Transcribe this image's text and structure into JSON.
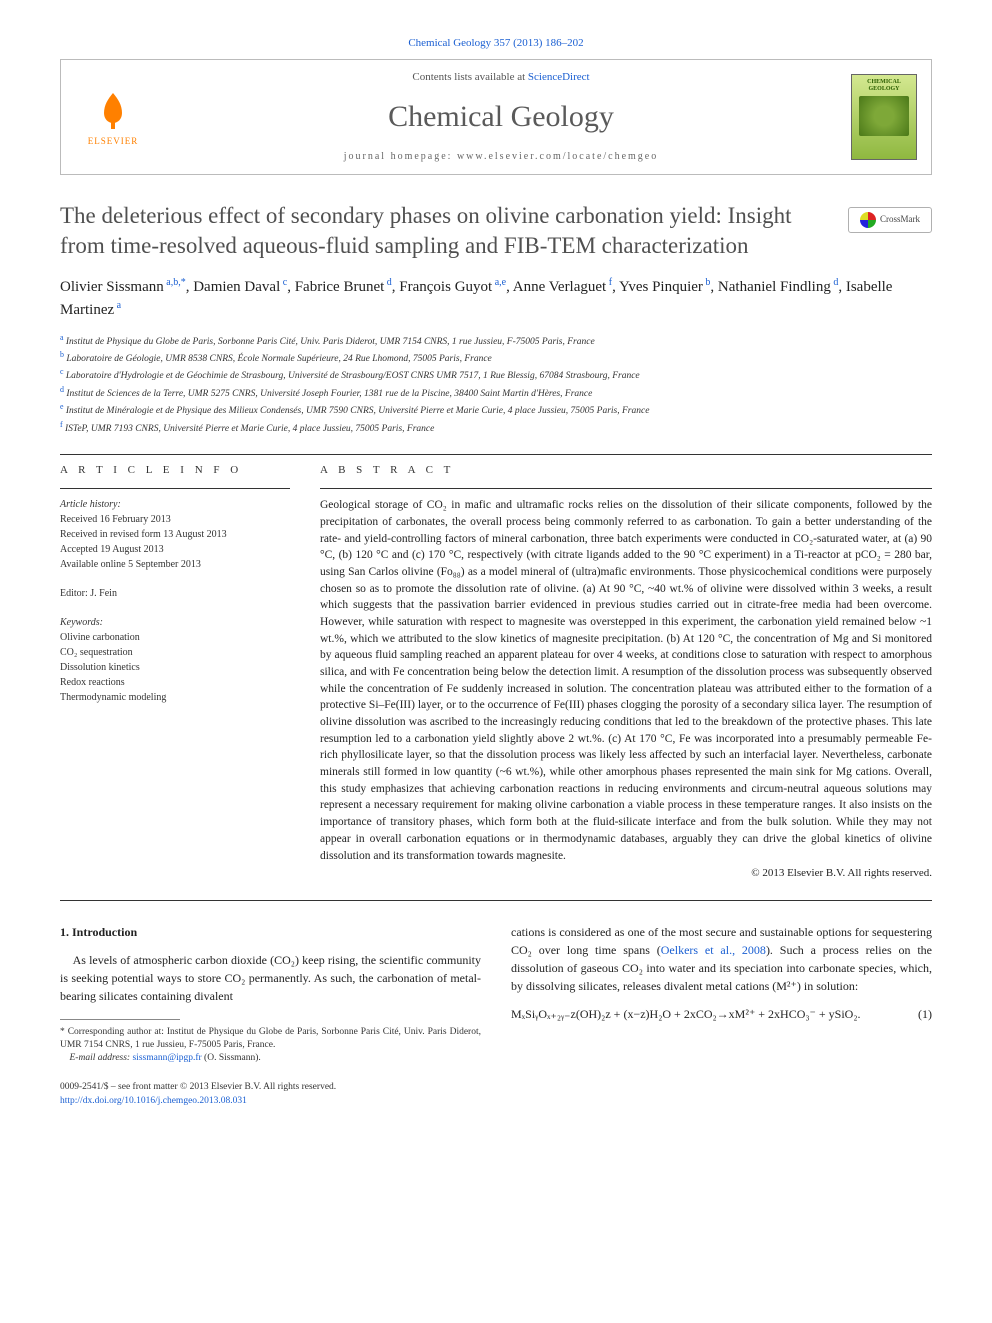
{
  "top_link": "Chemical Geology 357 (2013) 186–202",
  "header": {
    "publisher": "ELSEVIER",
    "contents_prefix": "Contents lists available at ",
    "contents_link": "ScienceDirect",
    "journal": "Chemical Geology",
    "homepage_prefix": "journal homepage: ",
    "homepage_url": "www.elsevier.com/locate/chemgeo",
    "cover_label": "CHEMICAL GEOLOGY"
  },
  "crossmark": "CrossMark",
  "title": "The deleterious effect of secondary phases on olivine carbonation yield: Insight from time-resolved aqueous-fluid sampling and FIB-TEM characterization",
  "authors_html": "Olivier Sissmann<sup> a,b,*</sup>, Damien Daval<sup> c</sup>, Fabrice Brunet<sup> d</sup>, François Guyot<sup> a,e</sup>, Anne Verlaguet<sup> f</sup>, Yves Pinquier<sup> b</sup>, Nathaniel Findling<sup> d</sup>, Isabelle Martinez<sup> a</sup>",
  "affiliations": [
    {
      "sup": "a",
      "text": "Institut de Physique du Globe de Paris, Sorbonne Paris Cité, Univ. Paris Diderot, UMR 7154 CNRS, 1 rue Jussieu, F-75005 Paris, France"
    },
    {
      "sup": "b",
      "text": "Laboratoire de Géologie, UMR 8538 CNRS, École Normale Supérieure, 24 Rue Lhomond, 75005 Paris, France"
    },
    {
      "sup": "c",
      "text": "Laboratoire d'Hydrologie et de Géochimie de Strasbourg, Université de Strasbourg/EOST CNRS UMR 7517, 1 Rue Blessig, 67084 Strasbourg, France"
    },
    {
      "sup": "d",
      "text": "Institut de Sciences de la Terre, UMR 5275 CNRS, Université Joseph Fourier, 1381 rue de la Piscine, 38400 Saint Martin d'Hères, France"
    },
    {
      "sup": "e",
      "text": "Institut de Minéralogie et de Physique des Milieux Condensés, UMR 7590 CNRS, Université Pierre et Marie Curie, 4 place Jussieu, 75005 Paris, France"
    },
    {
      "sup": "f",
      "text": "ISTeP, UMR 7193 CNRS, Université Pierre et Marie Curie, 4 place Jussieu, 75005 Paris, France"
    }
  ],
  "article_info_head": "A R T I C L E   I N F O",
  "abstract_head": "A B S T R A C T",
  "history_label": "Article history:",
  "history": [
    "Received 16 February 2013",
    "Received in revised form 13 August 2013",
    "Accepted 19 August 2013",
    "Available online 5 September 2013"
  ],
  "editor_line": "Editor: J. Fein",
  "keywords_label": "Keywords:",
  "keywords": [
    "Olivine carbonation",
    "CO₂ sequestration",
    "Dissolution kinetics",
    "Redox reactions",
    "Thermodynamic modeling"
  ],
  "abstract": "Geological storage of CO₂ in mafic and ultramafic rocks relies on the dissolution of their silicate components, followed by the precipitation of carbonates, the overall process being commonly referred to as carbonation. To gain a better understanding of the rate- and yield-controlling factors of mineral carbonation, three batch experiments were conducted in CO₂-saturated water, at (a) 90 °C, (b) 120 °C and (c) 170 °C, respectively (with citrate ligands added to the 90 °C experiment) in a Ti-reactor at pCO₂ = 280 bar, using San Carlos olivine (Fo₈₈) as a model mineral of (ultra)mafic environments. Those physicochemical conditions were purposely chosen so as to promote the dissolution rate of olivine. (a) At 90 °C, ~40 wt.% of olivine were dissolved within 3 weeks, a result which suggests that the passivation barrier evidenced in previous studies carried out in citrate-free media had been overcome. However, while saturation with respect to magnesite was overstepped in this experiment, the carbonation yield remained below ~1 wt.%, which we attributed to the slow kinetics of magnesite precipitation. (b) At 120 °C, the concentration of Mg and Si monitored by aqueous fluid sampling reached an apparent plateau for over 4 weeks, at conditions close to saturation with respect to amorphous silica, and with Fe concentration being below the detection limit. A resumption of the dissolution process was subsequently observed while the concentration of Fe suddenly increased in solution. The concentration plateau was attributed either to the formation of a protective Si–Fe(III) layer, or to the occurrence of Fe(III) phases clogging the porosity of a secondary silica layer. The resumption of olivine dissolution was ascribed to the increasingly reducing conditions that led to the breakdown of the protective phases. This late resumption led to a carbonation yield slightly above 2 wt.%. (c) At 170 °C, Fe was incorporated into a presumably permeable Fe-rich phyllosilicate layer, so that the dissolution process was likely less affected by such an interfacial layer. Nevertheless, carbonate minerals still formed in low quantity (~6 wt.%), while other amorphous phases represented the main sink for Mg cations. Overall, this study emphasizes that achieving carbonation reactions in reducing environments and circum-neutral aqueous solutions may represent a necessary requirement for making olivine carbonation a viable process in these temperature ranges. It also insists on the importance of transitory phases, which form both at the fluid-silicate interface and from the bulk solution. While they may not appear in overall carbonation equations or in thermodynamic databases, arguably they can drive the global kinetics of olivine dissolution and its transformation towards magnesite.",
  "copyright": "© 2013 Elsevier B.V. All rights reserved.",
  "intro_head": "1. Introduction",
  "intro_left": "As levels of atmospheric carbon dioxide (CO₂) keep rising, the scientific community is seeking potential ways to store CO₂ permanently. As such, the carbonation of metal-bearing silicates containing divalent",
  "intro_right_1": "cations is considered as one of the most secure and sustainable options for sequestering CO₂ over long time spans (",
  "intro_right_cite": "Oelkers et al., 2008",
  "intro_right_2": "). Such a process relies on the dissolution of gaseous CO₂ into water and its speciation into carbonate species, which, by dissolving silicates, releases divalent metal cations (M²⁺) in solution:",
  "equation": "MₓSiᵧOₓ₊₂ᵧ₋z(OH)₂z + (x−z)H₂O + 2xCO₂→xM²⁺ + 2xHCO₃⁻ + ySiO₂.",
  "eqn_num": "(1)",
  "footnote_corr": "* Corresponding author at: Institut de Physique du Globe de Paris, Sorbonne Paris Cité, Univ. Paris Diderot, UMR 7154 CNRS, 1 rue Jussieu, F-75005 Paris, France.",
  "footnote_email_label": "E-mail address: ",
  "footnote_email": "sissmann@ipgp.fr",
  "footnote_email_tail": " (O. Sissmann).",
  "footer_issn": "0009-2541/$ – see front matter © 2013 Elsevier B.V. All rights reserved.",
  "footer_doi": "http://dx.doi.org/10.1016/j.chemgeo.2013.08.031",
  "colors": {
    "link": "#1a5fd2",
    "text": "#222222",
    "title_gray": "#505050",
    "journal_gray": "#5a5a5a",
    "border": "#bbbbbb",
    "elsevier_orange": "#ff8000"
  }
}
